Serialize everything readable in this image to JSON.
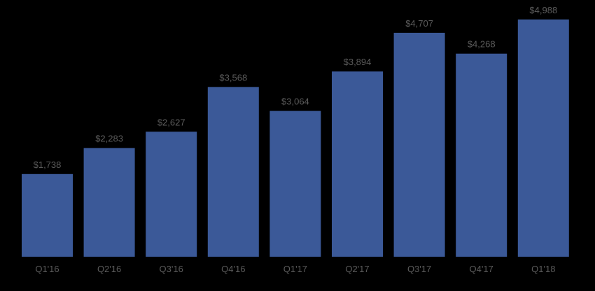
{
  "chart_data": {
    "type": "bar",
    "categories": [
      "Q1'16",
      "Q2'16",
      "Q3'16",
      "Q4'16",
      "Q1'17",
      "Q2'17",
      "Q3'17",
      "Q4'17",
      "Q1'18"
    ],
    "values": [
      1738,
      2283,
      2627,
      3568,
      3064,
      3894,
      4707,
      4268,
      4988
    ],
    "data_labels": [
      "$1,738",
      "$2,283",
      "$2,627",
      "$3,568",
      "$3,064",
      "$3,894",
      "$4,707",
      "$4,268",
      "$4,988"
    ],
    "title": "",
    "xlabel": "",
    "ylabel": "",
    "ylim": [
      0,
      5220
    ],
    "grid": false,
    "colors": {
      "bar": "#3b5998",
      "label": "#5b5b5b",
      "background": "#000000"
    }
  }
}
